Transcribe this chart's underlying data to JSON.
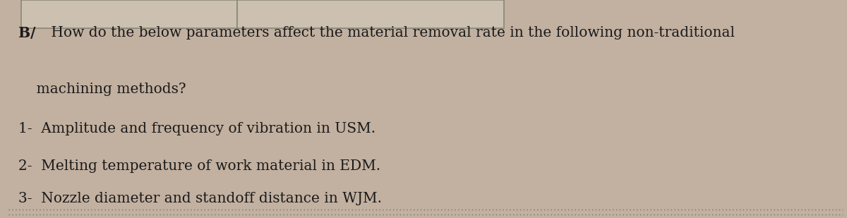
{
  "bg_color": "#c2b0a0",
  "text_color": "#1a1a1a",
  "bold_prefix": "B/",
  "line1_rest": " How do the below parameters affect the material removal rate in the following non-traditional",
  "line2": "    machining methods?",
  "item1": "1-  Amplitude and frequency of vibration in USM.",
  "item2": "2-  Melting temperature of work material in EDM.",
  "item3": "3-  Nozzle diameter and standoff distance in WJM.",
  "top_rect_color": "#ccc0b0",
  "top_rect_border": "#888878",
  "bottom_dots_color": "#777760",
  "figsize": [
    12.0,
    3.09
  ],
  "dpi": 100,
  "fontsize": 14.5
}
